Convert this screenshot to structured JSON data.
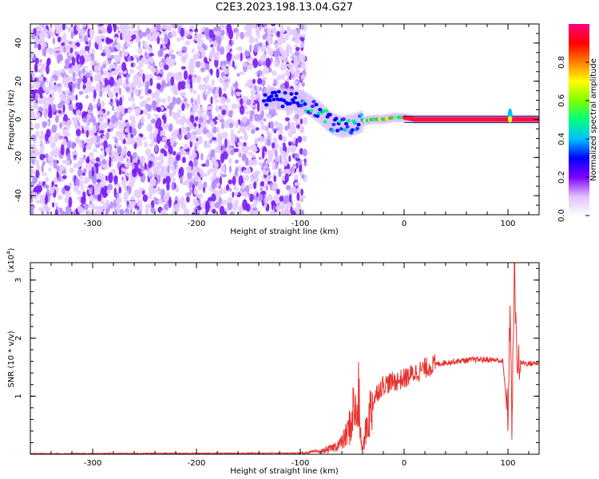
{
  "chart_data": [
    {
      "type": "heatmap",
      "title": "C2E3.2023.198.13.04.G27",
      "xlabel": "Height of straight line (km)",
      "ylabel": "Frequency (Hz)",
      "xlim": [
        -360,
        130
      ],
      "ylim": [
        -50,
        50
      ],
      "x_ticks": [
        "-300",
        "-200",
        "-100",
        "0",
        "100"
      ],
      "y_ticks": [
        "-40",
        "-20",
        "0",
        "20",
        "40"
      ],
      "colorbar": {
        "label": "Normalized spectral amplitude",
        "range": [
          0,
          1
        ],
        "ticks": [
          "0.0",
          "0.2",
          "0.4",
          "0.6",
          "0.8"
        ],
        "colors": [
          "#ffffff",
          "#e0c0ff",
          "#8000ff",
          "#0000ff",
          "#00c0ff",
          "#00ff80",
          "#80ff00",
          "#ffff00",
          "#ff8000",
          "#ff0000",
          "#ff0080"
        ]
      },
      "noise_region_x": [
        -360,
        -95
      ],
      "signal_track": {
        "x": [
          -135,
          -100,
          -90,
          -80,
          -70,
          -60,
          -50,
          -40,
          -30,
          -20,
          -10,
          0,
          10,
          130
        ],
        "freq_hz": [
          11,
          10,
          7,
          3,
          -2,
          -4,
          -3,
          -1,
          0,
          0,
          1,
          1,
          0,
          0
        ]
      },
      "spike_x": 102
    },
    {
      "type": "line",
      "xlabel": "Height of straight line (km)",
      "ylabel": "SNR (10 * v/v)",
      "y_multiplier": "(x10",
      "y_multiplier_exp": "4",
      "xlim": [
        -360,
        130
      ],
      "ylim": [
        0,
        3.3
      ],
      "x_ticks": [
        "-300",
        "-200",
        "-100",
        "0",
        "100"
      ],
      "y_ticks": [
        "1",
        "2",
        "3"
      ],
      "series": [
        {
          "color": "#e8302c",
          "x": [
            -360,
            -100,
            -80,
            -70,
            -60,
            -55,
            -50,
            -48,
            -46,
            -44,
            -42,
            -40,
            -36,
            -30,
            -25,
            -20,
            -10,
            0,
            10,
            20,
            30,
            40,
            50,
            60,
            70,
            80,
            90,
            95,
            100,
            102,
            104,
            106,
            108,
            110,
            120,
            130
          ],
          "y": [
            0.01,
            0.02,
            0.05,
            0.1,
            0.2,
            0.35,
            0.6,
            0.95,
            0.5,
            1.05,
            0.3,
            0.05,
            0.5,
            0.9,
            1.1,
            1.2,
            1.25,
            1.3,
            1.4,
            1.48,
            1.55,
            1.58,
            1.6,
            1.62,
            1.63,
            1.63,
            1.62,
            1.6,
            0.6,
            2.6,
            0.3,
            3.3,
            1.9,
            1.58,
            1.56,
            1.57
          ]
        }
      ]
    }
  ]
}
